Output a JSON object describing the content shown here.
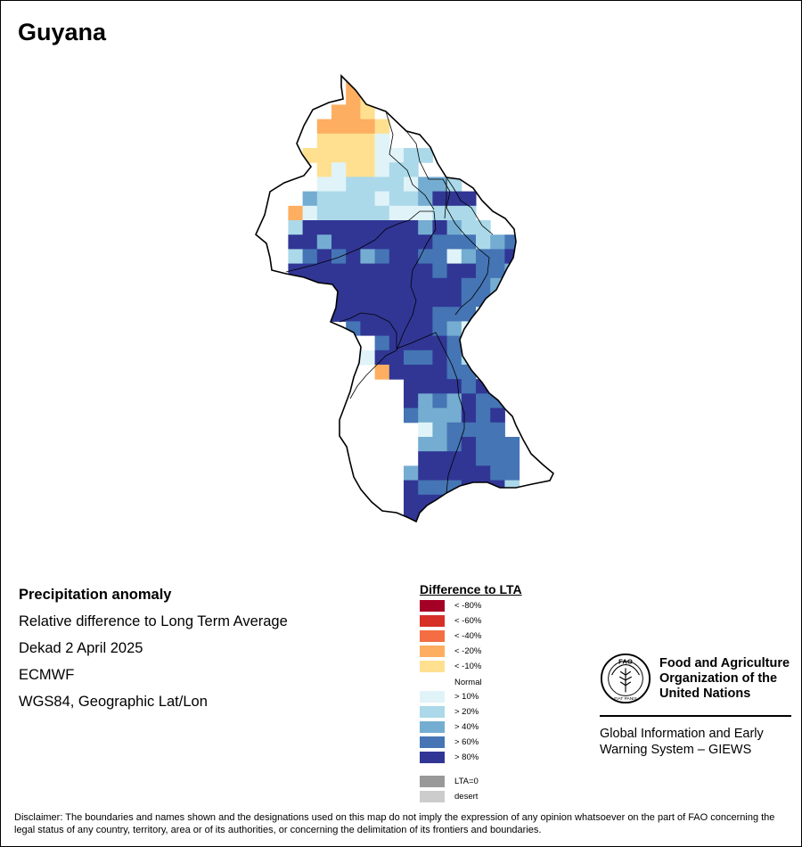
{
  "header": {
    "title": "Guyana"
  },
  "info": {
    "product": "Precipitation anomaly",
    "description": "Relative difference to Long Term Average",
    "period": "Dekad 2 April 2025",
    "source": "ECMWF",
    "projection": "WGS84, Geographic Lat/Lon"
  },
  "legend": {
    "title": "Difference to LTA",
    "items": [
      {
        "label": "< -80%",
        "color": "#a50026"
      },
      {
        "label": "< -60%",
        "color": "#d73027"
      },
      {
        "label": "< -40%",
        "color": "#f46d43"
      },
      {
        "label": "< -20%",
        "color": "#fdae61"
      },
      {
        "label": "< -10%",
        "color": "#fee090"
      },
      {
        "label": "Normal",
        "color": "#ffffff"
      },
      {
        "label": "> 10%",
        "color": "#e0f3f8"
      },
      {
        "label": "> 20%",
        "color": "#abd9e9"
      },
      {
        "label": "> 40%",
        "color": "#74add1"
      },
      {
        "label": "> 60%",
        "color": "#4575b4"
      },
      {
        "label": "> 80%",
        "color": "#313695"
      },
      {
        "label": "LTA=0",
        "color": "#999999"
      },
      {
        "label": "desert",
        "color": "#cccccc"
      }
    ]
  },
  "organization": {
    "logo_icon": "fao-logo-icon",
    "logo_letters": "FAO",
    "logo_motto": "FIAT PANIS",
    "name": "Food and Agriculture Organization of the United Nations",
    "system": "Global Information and Early Warning System – GIEWS"
  },
  "disclaimer": "Disclaimer: The boundaries and names shown and the designations used on this map do not imply the expression of any opinion whatsoever on the part of FAO concerning the legal status of any country, territory, area or of its authorities, or concerning the delimitation of its frontiers and boundaries."
}
